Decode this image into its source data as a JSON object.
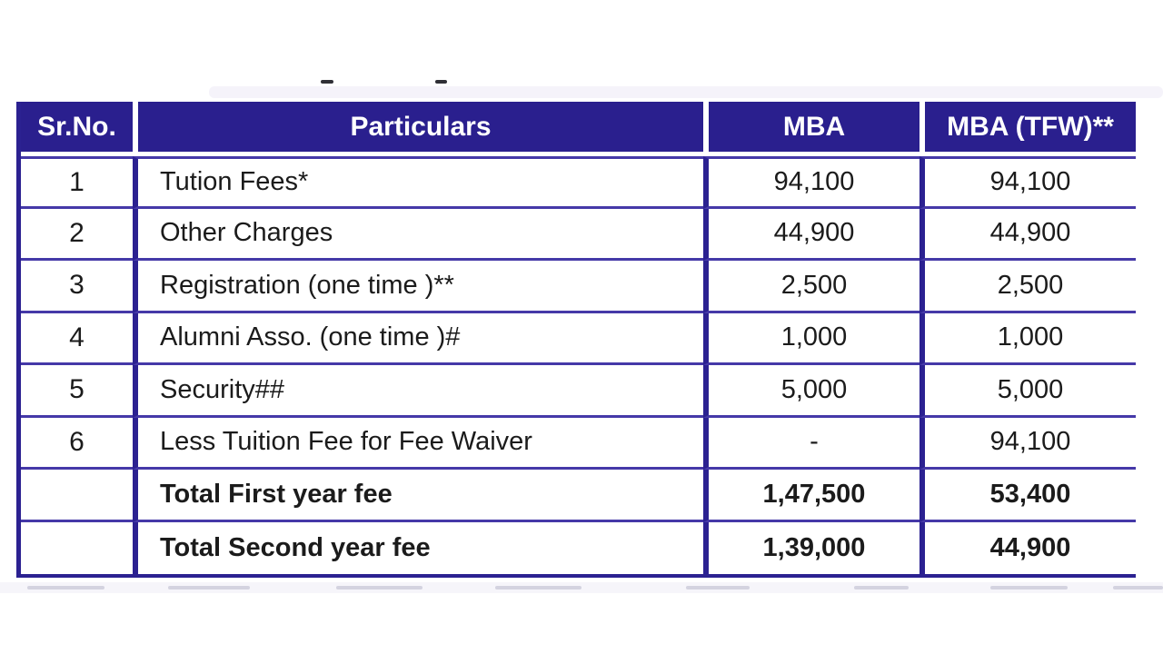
{
  "table": {
    "columns": [
      {
        "key": "sr_no",
        "label": "Sr.No."
      },
      {
        "key": "particulars",
        "label": "Particulars"
      },
      {
        "key": "mba",
        "label": "MBA"
      },
      {
        "key": "mba_tfw",
        "label": "MBA (TFW)**"
      }
    ],
    "rows": [
      {
        "sr_no": "1",
        "particulars": "Tution Fees*",
        "mba": "94,100",
        "mba_tfw": "94,100",
        "bold": false
      },
      {
        "sr_no": "2",
        "particulars": "Other Charges",
        "mba": "44,900",
        "mba_tfw": "44,900",
        "bold": false
      },
      {
        "sr_no": "3",
        "particulars": "Registration (one time )**",
        "mba": "2,500",
        "mba_tfw": "2,500",
        "bold": false
      },
      {
        "sr_no": "4",
        "particulars": "Alumni Asso. (one time )#",
        "mba": "1,000",
        "mba_tfw": "1,000",
        "bold": false
      },
      {
        "sr_no": "5",
        "particulars": "Security##",
        "mba": "5,000",
        "mba_tfw": "5,000",
        "bold": false
      },
      {
        "sr_no": "6",
        "particulars": "Less Tuition Fee for Fee Waiver",
        "mba": "-",
        "mba_tfw": "94,100",
        "bold": false
      },
      {
        "sr_no": "",
        "particulars": "Total First year fee",
        "mba": "1,47,500",
        "mba_tfw": "53,400",
        "bold": true
      },
      {
        "sr_no": "",
        "particulars": "Total Second year fee",
        "mba": "1,39,000",
        "mba_tfw": "44,900",
        "bold": true
      }
    ],
    "colors": {
      "header_bg": "#2a1f8e",
      "grid_thick": "#2b2191",
      "grid_thin": "#4539a8",
      "body_text": "#1b1b1b",
      "header_text": "#ffffff"
    }
  }
}
